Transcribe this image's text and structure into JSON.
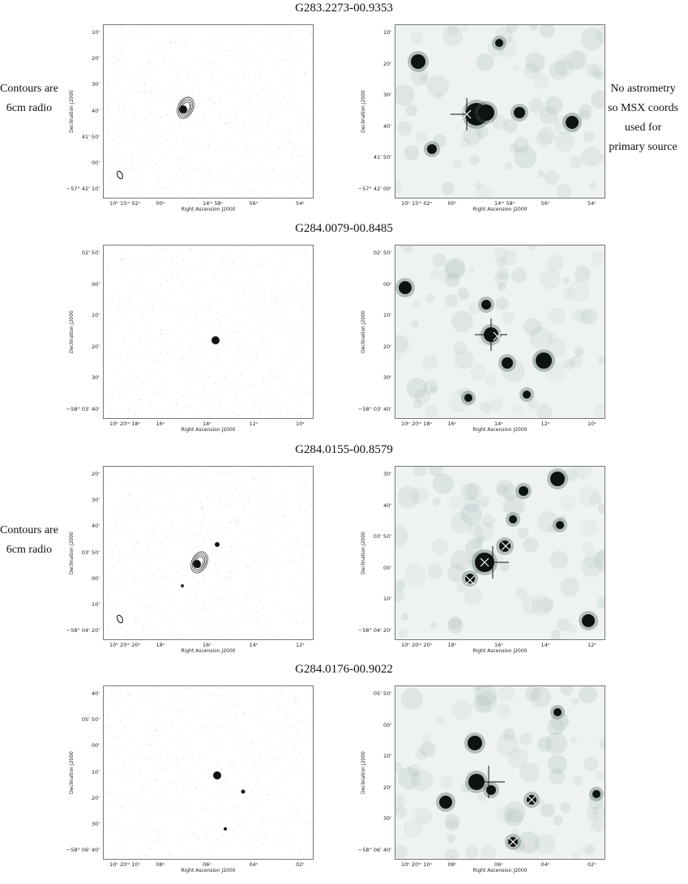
{
  "figure": {
    "rows": [
      {
        "title": "G283.2273-00.9353",
        "left_note": [
          "Contours are",
          "6cm radio"
        ],
        "right_note": [
          "No astrometry",
          "so MSX coords",
          "used for",
          "primary source"
        ],
        "left": {
          "ylabel": "Declination J2000",
          "xlabel": "Right Ascension J2000",
          "yticks": [
            "10'",
            "20'",
            "30'",
            "40'",
            "41' 50'",
            "00'",
            "−57° 42' 10'"
          ],
          "xticks": [
            "10ʰ 15ᵐ 02ˢ",
            "00ˢ",
            "14ᵐ 58ˢ",
            "56ˢ",
            "54ˢ"
          ]
        },
        "right": {
          "ylabel": "Declination J2000",
          "xlabel": "Right Ascension J2000",
          "yticks": [
            "10'",
            "20'",
            "30'",
            "40'",
            "41' 50'",
            "−57° 42' 00'"
          ],
          "xticks": [
            "10ʰ 15ᵐ 02ˢ",
            "00ˢ",
            "14ᵐ 58ˢ",
            "56ˢ",
            "54ˢ"
          ]
        }
      },
      {
        "title": "G284.0079-00.8485",
        "left_note": [],
        "right_note": [],
        "left": {
          "ylabel": "Declination J2000",
          "xlabel": "Right Ascension J2000",
          "yticks": [
            "02' 50'",
            "00'",
            "10'",
            "20'",
            "30'",
            "−58° 03' 40'"
          ],
          "xticks": [
            "10ʰ 20ᵐ 18ˢ",
            "16ˢ",
            "14ˢ",
            "12ˢ",
            "10ˢ"
          ]
        },
        "right": {
          "ylabel": "Declination J2000",
          "xlabel": "Right Ascension J2000",
          "yticks": [
            "02' 50'",
            "00'",
            "10'",
            "20'",
            "30'",
            "−58° 03' 40'"
          ],
          "xticks": [
            "10ʰ 20ᵐ 18ˢ",
            "16ˢ",
            "14ˢ",
            "12ˢ",
            "10ˢ"
          ]
        }
      },
      {
        "title": "G284.0155-00.8579",
        "left_note": [
          "Contours are",
          "6cm radio"
        ],
        "right_note": [],
        "left": {
          "ylabel": "Declination J2000",
          "xlabel": "Right Ascension J2000",
          "yticks": [
            "20'",
            "30'",
            "40'",
            "03' 50'",
            "00'",
            "10'",
            "−58° 04' 20'"
          ],
          "xticks": [
            "10ʰ 20ᵐ 20ˢ",
            "18ˢ",
            "16ˢ",
            "14ˢ",
            "12ˢ"
          ]
        },
        "right": {
          "ylabel": "Declination J2000",
          "xlabel": "Right Ascension J2000",
          "yticks": [
            "30'",
            "40'",
            "03' 50'",
            "00'",
            "10'",
            "−58° 04' 20'"
          ],
          "xticks": [
            "10ʰ 20ᵐ 20ˢ",
            "18ˢ",
            "16ˢ",
            "14ˢ",
            "12ˢ"
          ]
        }
      },
      {
        "title": "G284.0176-00.9022",
        "left_note": [],
        "right_note": [],
        "left": {
          "ylabel": "Declination J2000",
          "xlabel": "Right Ascension J2000",
          "yticks": [
            "40'",
            "05' 50'",
            "00'",
            "10'",
            "20'",
            "30'",
            "−58° 06' 40'"
          ],
          "xticks": [
            "10ʰ 20ᵐ 10ˢ",
            "08ˢ",
            "06ˢ",
            "04ˢ",
            "02ˢ"
          ]
        },
        "right": {
          "ylabel": "Declination J2000",
          "xlabel": "Right Ascension J2000",
          "yticks": [
            "05' 50'",
            "00'",
            "10'",
            "20'",
            "30'",
            "−58° 06' 40'"
          ],
          "xticks": [
            "10ʰ 20ᵐ 10ˢ",
            "08ˢ",
            "06ˢ",
            "04ˢ",
            "02ˢ"
          ]
        }
      }
    ]
  }
}
